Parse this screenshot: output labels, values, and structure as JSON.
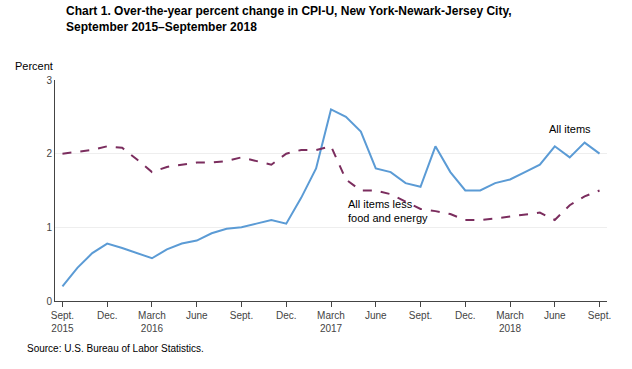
{
  "chart_data": {
    "type": "line",
    "title": "Chart 1. Over-the-year percent change in CPI-U, New York-Newark-Jersey City,\nSeptember 2015–September 2018",
    "ylabel": "Percent",
    "source": "Source: U.S. Bureau of Labor Statistics.",
    "categories": [
      "Sept.\n2015",
      null,
      null,
      "Dec.",
      null,
      null,
      "March\n2016",
      null,
      null,
      "June",
      null,
      null,
      "Sept.",
      null,
      null,
      "Dec.",
      null,
      null,
      "March\n2017",
      null,
      null,
      "June",
      null,
      null,
      "Sept.",
      null,
      null,
      "Dec.",
      null,
      null,
      "March\n2018",
      null,
      null,
      "June",
      null,
      null,
      "Sept."
    ],
    "series": [
      {
        "name": "All items",
        "color": "#5B9BD5",
        "line_style": "solid",
        "values": [
          0.2,
          0.45,
          0.65,
          0.78,
          0.72,
          0.65,
          0.58,
          0.7,
          0.78,
          0.82,
          0.92,
          0.98,
          1.0,
          1.05,
          1.1,
          1.05,
          1.4,
          1.8,
          2.6,
          2.5,
          2.3,
          1.8,
          1.75,
          1.6,
          1.55,
          2.1,
          1.75,
          1.5,
          1.5,
          1.6,
          1.65,
          1.75,
          1.85,
          2.1,
          1.95,
          2.15,
          2.0
        ]
      },
      {
        "name": "All items less\nfood and energy",
        "color": "#7B2D5E",
        "line_style": "dashed",
        "values": [
          2.0,
          2.02,
          2.05,
          2.1,
          2.08,
          1.92,
          1.75,
          1.82,
          1.85,
          1.88,
          1.88,
          1.9,
          1.95,
          1.9,
          1.85,
          2.0,
          2.05,
          2.05,
          2.1,
          1.65,
          1.5,
          1.5,
          1.45,
          1.35,
          1.25,
          1.22,
          1.18,
          1.1,
          1.1,
          1.12,
          1.15,
          1.18,
          1.2,
          1.1,
          1.3,
          1.42,
          1.5
        ]
      }
    ],
    "ylim": [
      0,
      3
    ],
    "yticks": [
      0,
      1,
      2,
      3
    ],
    "grid": true
  }
}
